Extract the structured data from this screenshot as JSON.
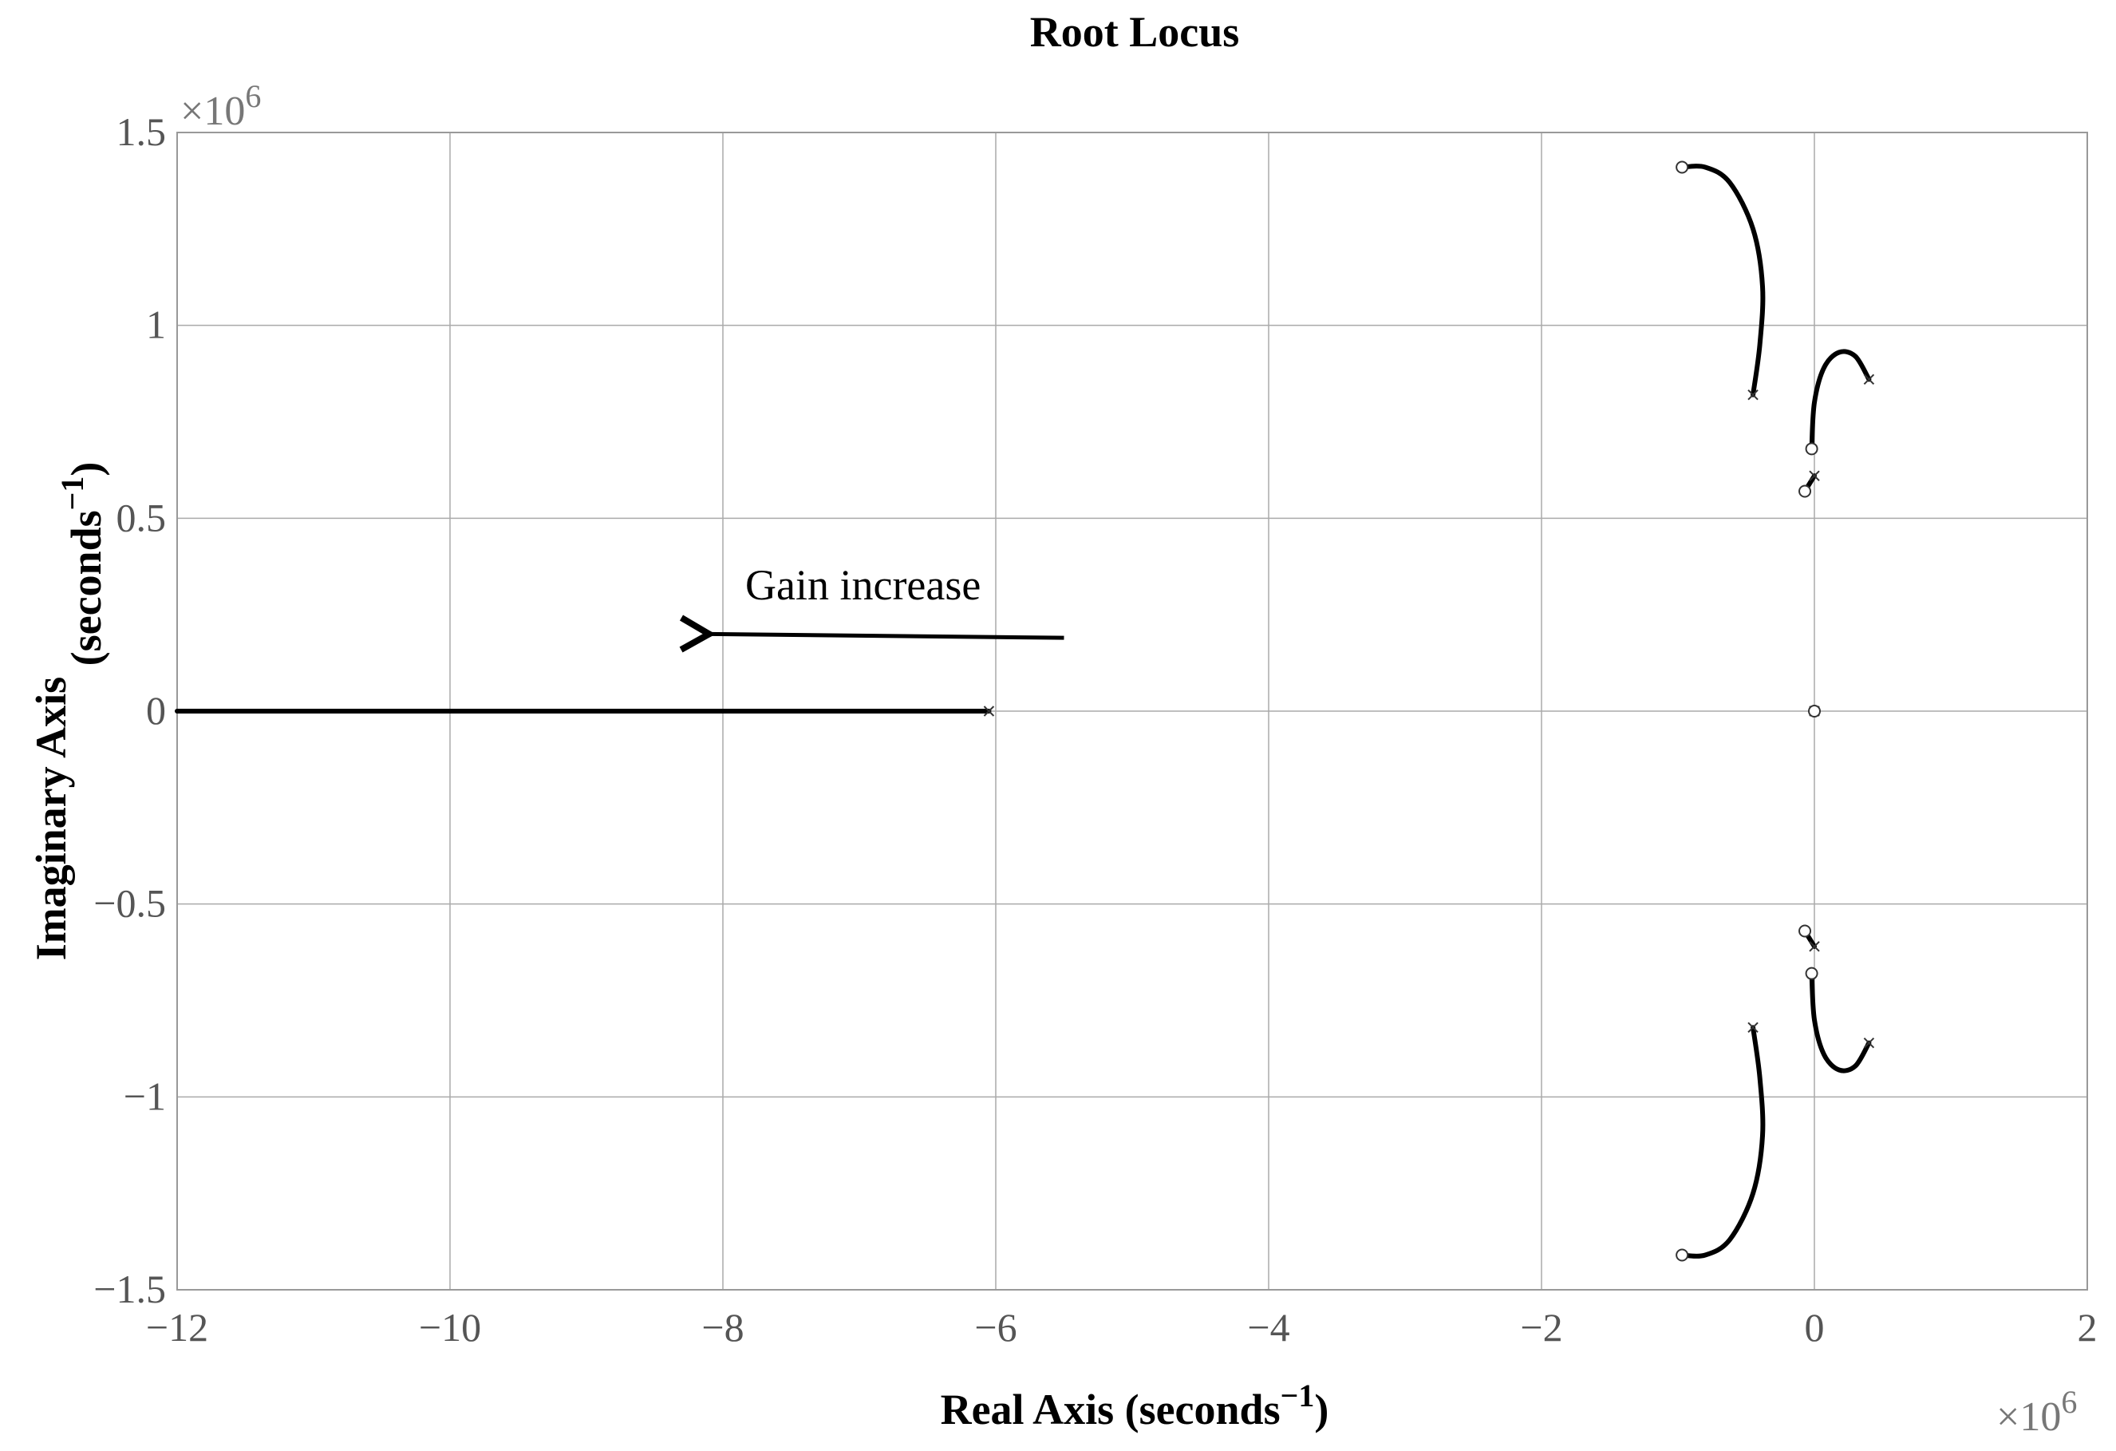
{
  "chart_data": {
    "type": "line",
    "title": "Root Locus",
    "xlabel": "Real Axis (seconds",
    "xlabel_sup": "−1",
    "xlabel_end": ")",
    "ylabel": "Imaginary Axis ",
    "ylabel_bold2": "(seconds",
    "ylabel_sup": "−1",
    "ylabel_end": ")",
    "xlim": [
      -12,
      2
    ],
    "ylim": [
      -1.5,
      1.5
    ],
    "x_multiplier": "×10",
    "x_multiplier_exp": "6",
    "y_multiplier": "×10",
    "y_multiplier_exp": "6",
    "grid": true,
    "xticks": [
      -12,
      -10,
      -8,
      -6,
      -4,
      -2,
      0,
      2
    ],
    "xtick_labels": [
      "−12",
      "−10",
      "−8",
      "−6",
      "−4",
      "−2",
      "0",
      "2"
    ],
    "yticks": [
      1.5,
      1,
      0.5,
      0,
      -0.5,
      -1,
      -1.5
    ],
    "ytick_labels": [
      "1.5",
      "1",
      "0.5",
      "0",
      "−0.5",
      "−1",
      "−1.5"
    ],
    "annotation": {
      "text": "Gain increase",
      "arrow_from": [
        -5.5,
        0.19
      ],
      "arrow_to": [
        -8.2,
        0.2
      ]
    },
    "series": [
      {
        "points": [
          [
            -0.45,
            0.82
          ],
          [
            -0.4,
            0.95
          ],
          [
            -0.38,
            1.1
          ],
          [
            -0.45,
            1.25
          ],
          [
            -0.62,
            1.37
          ],
          [
            -0.8,
            1.41
          ],
          [
            -0.97,
            1.41
          ]
        ]
      },
      {
        "points": [
          [
            -0.45,
            -0.82
          ],
          [
            -0.4,
            -0.95
          ],
          [
            -0.38,
            -1.1
          ],
          [
            -0.45,
            -1.25
          ],
          [
            -0.62,
            -1.37
          ],
          [
            -0.8,
            -1.41
          ],
          [
            -0.97,
            -1.41
          ]
        ]
      },
      {
        "points": [
          [
            0.4,
            0.86
          ],
          [
            0.3,
            0.92
          ],
          [
            0.18,
            0.93
          ],
          [
            0.07,
            0.89
          ],
          [
            0.0,
            0.8
          ],
          [
            -0.02,
            0.68
          ]
        ]
      },
      {
        "points": [
          [
            0.4,
            -0.86
          ],
          [
            0.3,
            -0.92
          ],
          [
            0.18,
            -0.93
          ],
          [
            0.07,
            -0.89
          ],
          [
            0.0,
            -0.8
          ],
          [
            -0.02,
            -0.68
          ]
        ]
      },
      {
        "points": [
          [
            0.0,
            0.61
          ],
          [
            -0.07,
            0.57
          ]
        ]
      },
      {
        "points": [
          [
            0.0,
            -0.61
          ],
          [
            -0.07,
            -0.57
          ]
        ]
      },
      {
        "points": [
          [
            -6.05,
            0.0
          ],
          [
            -12.0,
            0.0
          ]
        ]
      }
    ],
    "poles": [
      [
        -0.45,
        0.82
      ],
      [
        -0.45,
        -0.82
      ],
      [
        0.4,
        0.86
      ],
      [
        0.4,
        -0.86
      ],
      [
        0.0,
        0.61
      ],
      [
        0.0,
        -0.61
      ],
      [
        -6.05,
        0.0
      ],
      [
        0.0,
        0.0
      ]
    ],
    "zeros": [
      [
        -0.97,
        1.41
      ],
      [
        -0.97,
        -1.41
      ],
      [
        -0.02,
        0.68
      ],
      [
        -0.02,
        -0.68
      ],
      [
        -0.07,
        0.57
      ],
      [
        -0.07,
        -0.57
      ],
      [
        0.0,
        0.0
      ]
    ]
  }
}
